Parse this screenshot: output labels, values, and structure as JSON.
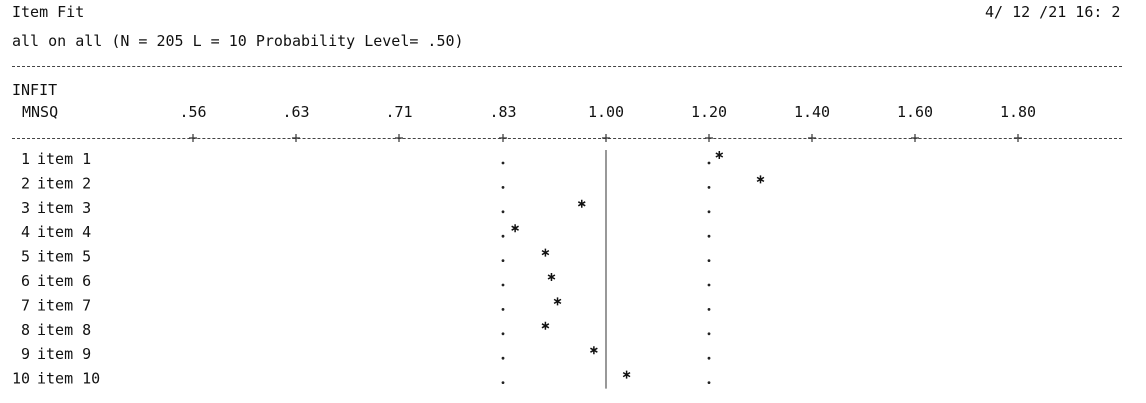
{
  "header": {
    "title": "Item Fit",
    "timestamp": "4/ 12 /21 16: 2",
    "subtitle": "all on all (N = 205 L = 10 Probability Level= .50)"
  },
  "axis": {
    "line1": "INFIT",
    "line2": "MNSQ"
  },
  "chart_data": {
    "type": "scatter",
    "title": "Item Fit",
    "xlabel": "INFIT MNSQ",
    "x_tick_labels": [
      ".56",
      ".63",
      ".71",
      ".83",
      "1.00",
      "1.20",
      "1.40",
      "1.60",
      "1.80"
    ],
    "x_tick_values": [
      0.56,
      0.63,
      0.71,
      0.83,
      1.0,
      1.2,
      1.4,
      1.6,
      1.8
    ],
    "reference_value": 1.0,
    "acceptance_range": [
      0.83,
      1.2
    ],
    "items": [
      {
        "num": "1",
        "label": "item 1",
        "infit_mnsq": 1.22
      },
      {
        "num": "2",
        "label": "item 2",
        "infit_mnsq": 1.3
      },
      {
        "num": "3",
        "label": "item 3",
        "infit_mnsq": 0.96
      },
      {
        "num": "4",
        "label": "item 4",
        "infit_mnsq": 0.85
      },
      {
        "num": "5",
        "label": "item 5",
        "infit_mnsq": 0.9
      },
      {
        "num": "6",
        "label": "item 6",
        "infit_mnsq": 0.91
      },
      {
        "num": "7",
        "label": "item 7",
        "infit_mnsq": 0.92
      },
      {
        "num": "8",
        "label": "item 8",
        "infit_mnsq": 0.9
      },
      {
        "num": "9",
        "label": "item 9",
        "infit_mnsq": 0.98
      },
      {
        "num": "10",
        "label": "item 10",
        "infit_mnsq": 1.04
      }
    ]
  }
}
